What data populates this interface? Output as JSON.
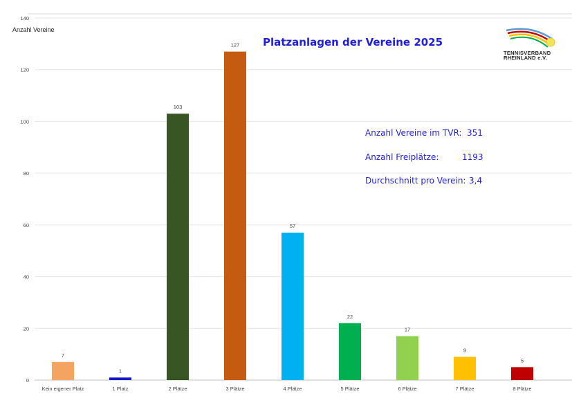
{
  "title": "Platzanlagen der Vereine 2025",
  "y_axis_label": "Anzahl Vereine",
  "info": {
    "row1_label": "Anzahl Vereine im TVR:",
    "row1_value": "351",
    "row2_label": "Anzahl Freiplätze:",
    "row2_value": "1193",
    "row3_label": "Durchschnitt pro Verein:",
    "row3_value": "3,4"
  },
  "logo": {
    "line1": "TENNISVERBAND",
    "line2": "RHEINLAND e.V."
  },
  "chart_data": {
    "type": "bar",
    "title": "Platzanlagen der Vereine 2025",
    "xlabel": "",
    "ylabel": "Anzahl Vereine",
    "ylim": [
      0,
      140
    ],
    "yticks": [
      0,
      20,
      40,
      60,
      80,
      100,
      120,
      140
    ],
    "grid": true,
    "categories": [
      "Kein eigener Platz",
      "1 Platz",
      "2 Plätze",
      "3 Plätze",
      "4 Plätze",
      "5 Plätze",
      "6 Plätze",
      "7 Plätze",
      "8 Plätze"
    ],
    "values": [
      7,
      1,
      103,
      127,
      57,
      22,
      17,
      9,
      5
    ],
    "colors": [
      "#f4a460",
      "#1a1acd",
      "#375623",
      "#c55a11",
      "#00b0f0",
      "#00b050",
      "#92d050",
      "#ffc000",
      "#c00000"
    ]
  }
}
